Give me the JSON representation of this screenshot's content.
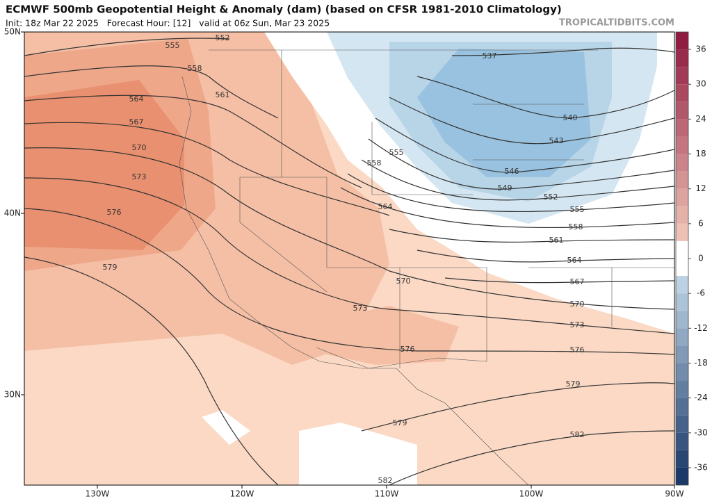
{
  "header": {
    "title": "ECMWF 500mb Geopotential Height & Anomaly (dam) (based on CFSR 1981-2010 Climatology)",
    "subtitle": "Init: 18z Mar 22 2025   Forecast Hour: [12]   valid at 06z Sun, Mar 23 2025",
    "watermark": "TROPICALTIDBITS.COM"
  },
  "map": {
    "lat_labels": [
      "50N",
      "40N",
      "30N"
    ],
    "lon_labels": [
      "130W",
      "120W",
      "110W",
      "100W",
      "90W"
    ],
    "contour_labels": [
      552,
      555,
      558,
      561,
      564,
      567,
      570,
      573,
      576,
      579,
      537,
      540,
      543,
      546,
      549,
      552,
      555,
      555,
      558,
      564,
      558,
      561,
      564,
      567,
      570,
      570,
      573,
      573,
      576,
      576,
      579,
      579,
      582,
      582
    ]
  },
  "colorbar": {
    "ticks": [
      36,
      30,
      24,
      18,
      12,
      6,
      0,
      -6,
      -12,
      -18,
      -24,
      -30,
      -36
    ]
  }
}
